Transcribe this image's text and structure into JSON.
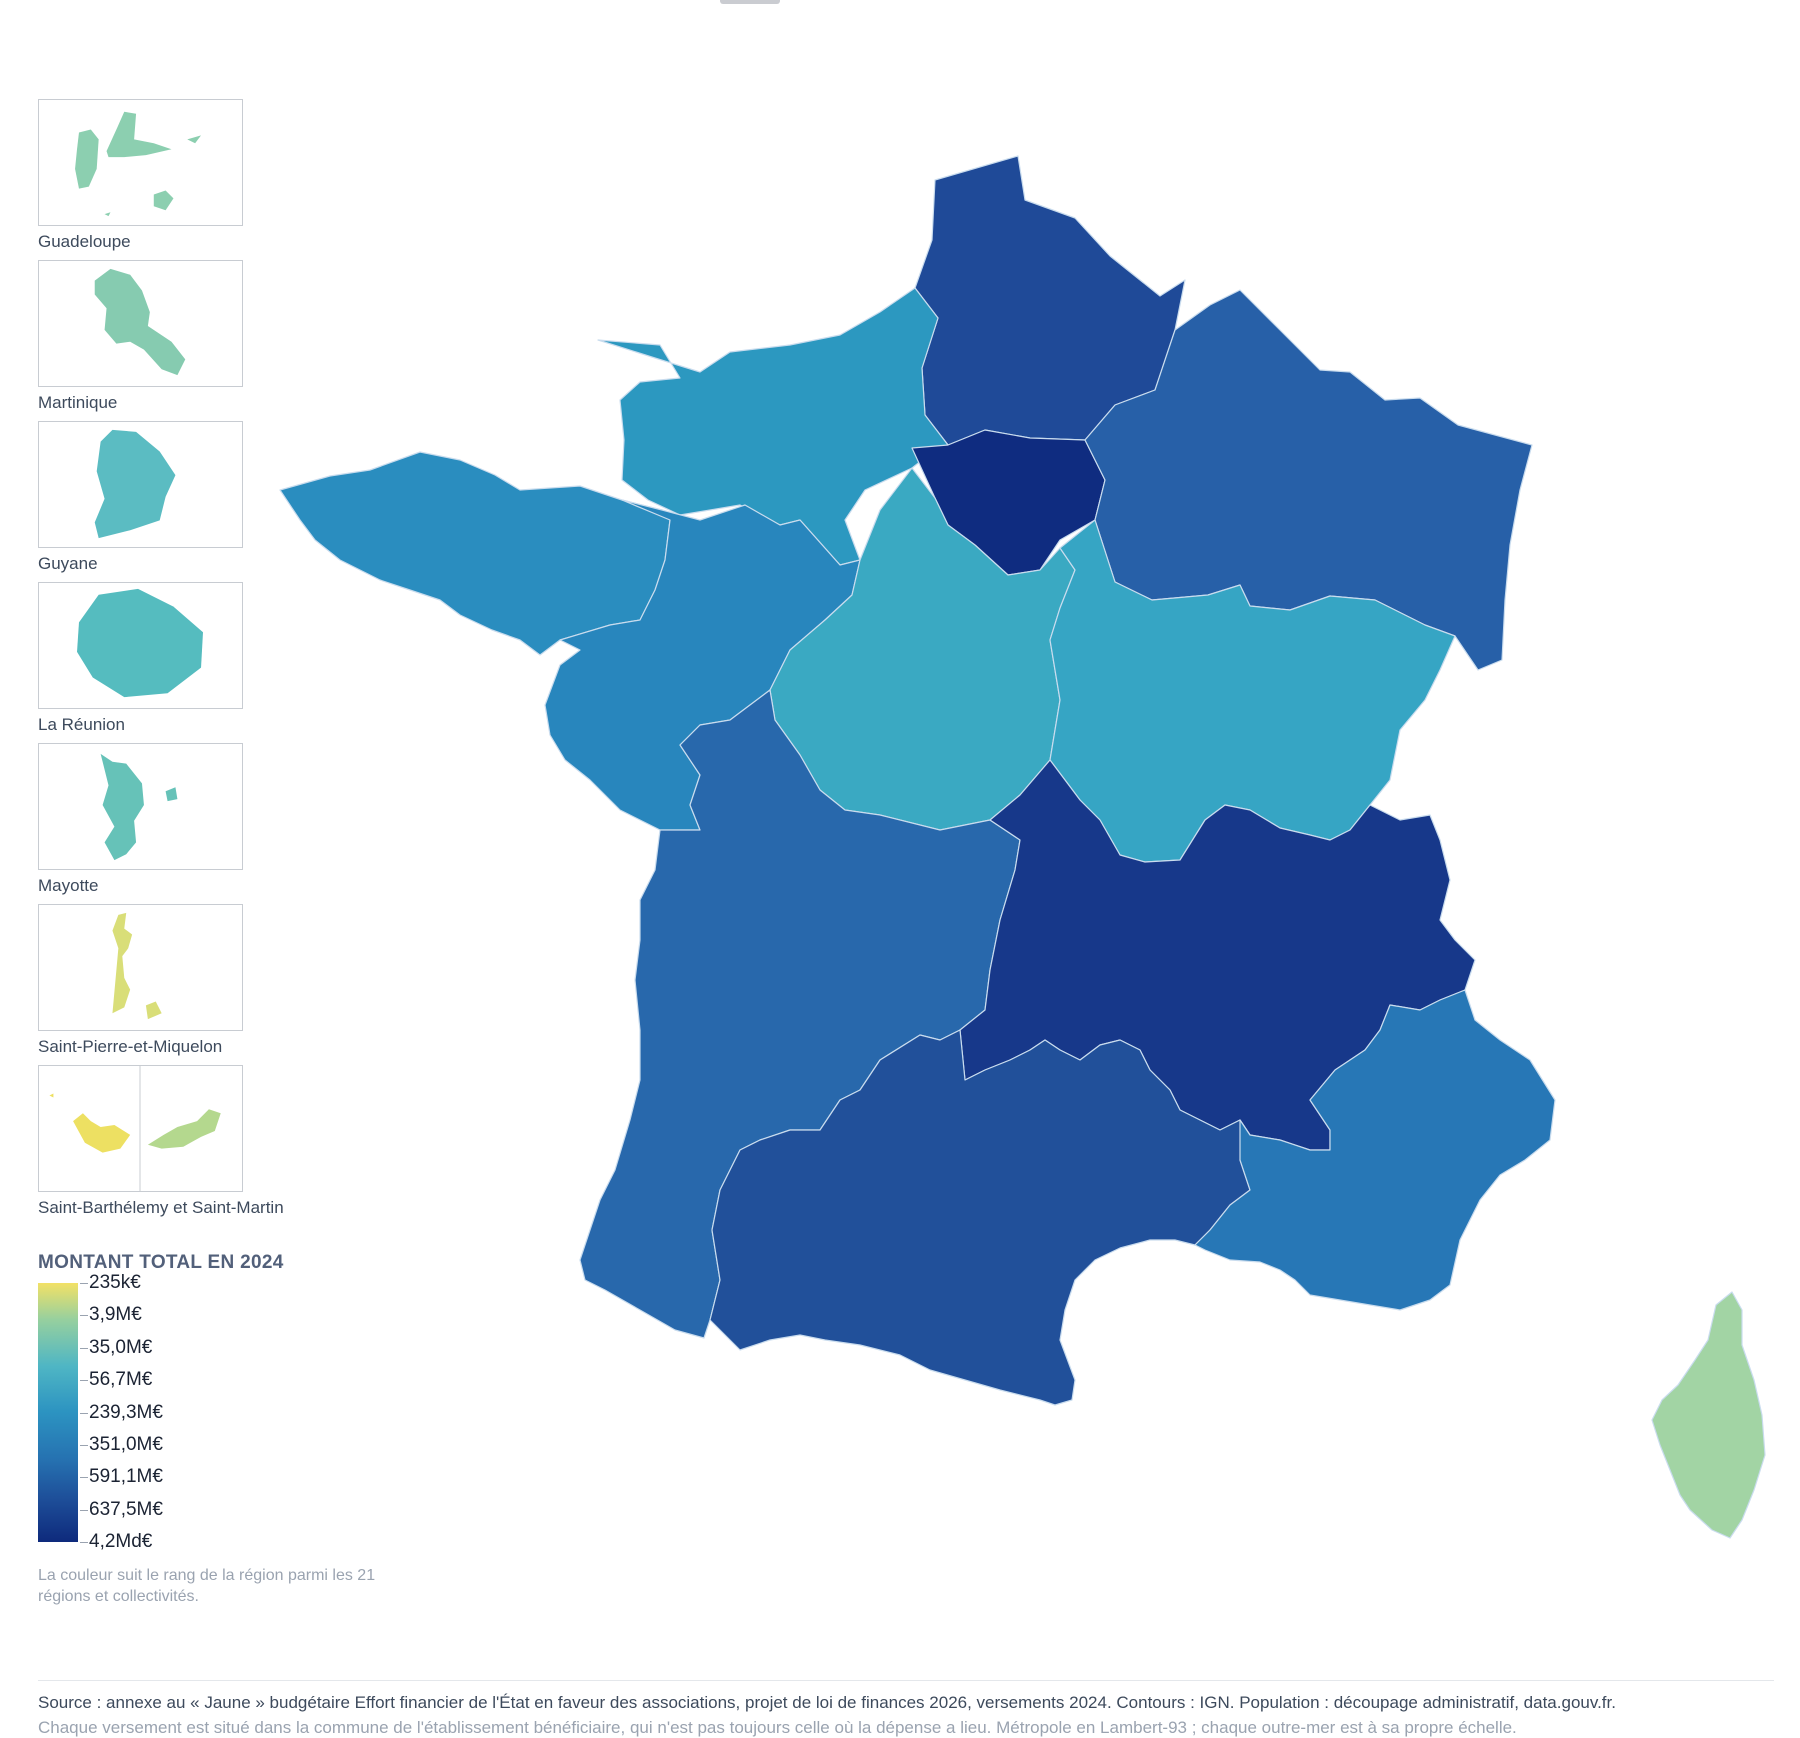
{
  "insets": [
    {
      "label": "Guadeloupe",
      "color": "#8ccfb0"
    },
    {
      "label": "Martinique",
      "color": "#86cbb0"
    },
    {
      "label": "Guyane",
      "color": "#5bbcc2"
    },
    {
      "label": "La Réunion",
      "color": "#55bcbf"
    },
    {
      "label": "Mayotte",
      "color": "#66c2b8"
    },
    {
      "label": "Saint-Pierre-et-Miquelon",
      "color": "#d9de78"
    },
    {
      "label": "Saint-Barthélemy et Saint-Martin",
      "colors": [
        "#ede062",
        "#b4d88e"
      ]
    }
  ],
  "legend": {
    "title": "MONTANT TOTAL EN 2024",
    "ticks": [
      "235k€",
      "3,9M€",
      "35,0M€",
      "56,7M€",
      "239,3M€",
      "351,0M€",
      "591,1M€",
      "637,5M€",
      "4,2Md€"
    ],
    "note": "La couleur suit le rang de la région parmi les 21 régions et collectivités."
  },
  "regions": [
    {
      "id": "hauts-de-france",
      "color": "#1f4a98"
    },
    {
      "id": "normandie",
      "color": "#2c98c0"
    },
    {
      "id": "ile-de-france",
      "color": "#0f2c80"
    },
    {
      "id": "grand-est",
      "color": "#2760a8"
    },
    {
      "id": "bretagne",
      "color": "#2a8dbf"
    },
    {
      "id": "pays-de-la-loire",
      "color": "#2886bd"
    },
    {
      "id": "centre-val-de-loire",
      "color": "#3aa9c2"
    },
    {
      "id": "bourgogne-franche-comte",
      "color": "#36a5c4"
    },
    {
      "id": "nouvelle-aquitaine",
      "color": "#2868ac"
    },
    {
      "id": "auvergne-rhone-alpes",
      "color": "#17388a"
    },
    {
      "id": "occitanie",
      "color": "#21509a"
    },
    {
      "id": "provence-alpes-cote-d-azur",
      "color": "#2777b6"
    },
    {
      "id": "corse",
      "color": "#a2d4a4"
    }
  ],
  "source": "Source : annexe au « Jaune » budgétaire Effort financier de l'État en faveur des associations, projet de loi de finances 2026, versements 2024. Contours : IGN. Population : découpage administratif, data.gouv.fr.",
  "method_note": "Chaque versement est situé dans la commune de l'établissement bénéficiaire, qui n'est pas toujours celle où la dépense a lieu. Métropole en Lambert-93 ; chaque outre-mer est à sa propre échelle."
}
